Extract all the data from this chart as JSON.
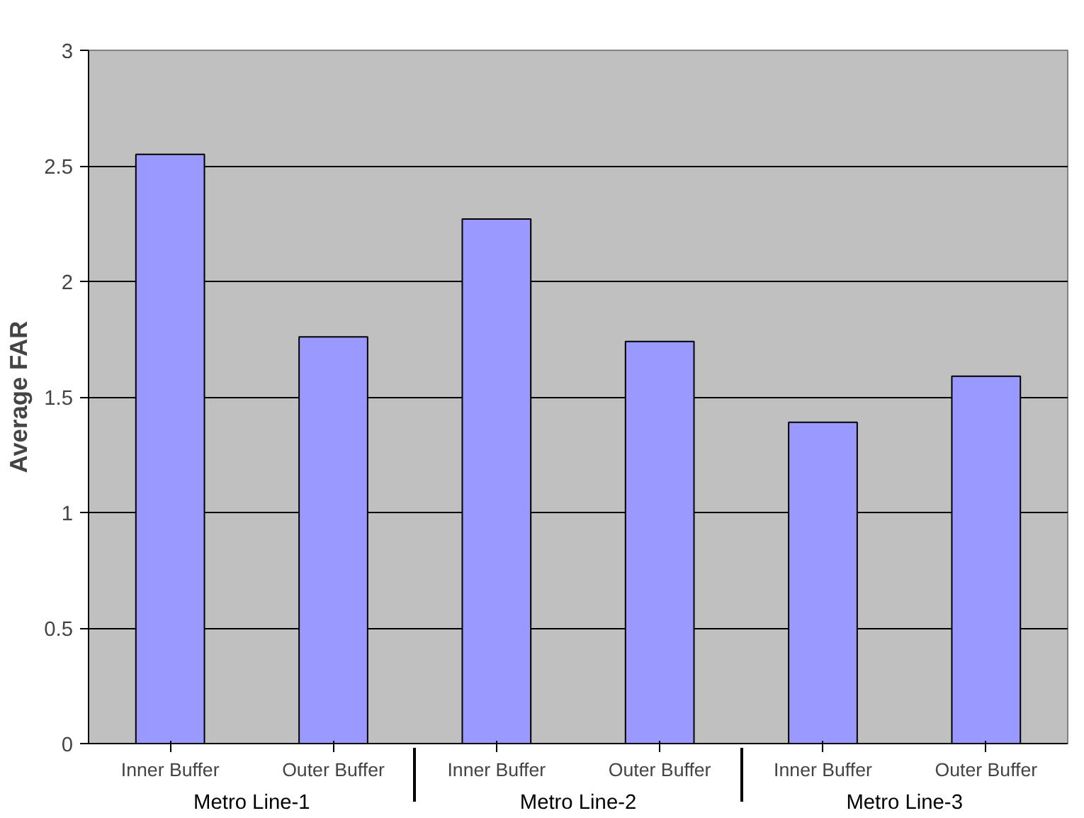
{
  "chart_data": {
    "type": "bar",
    "ylabel": "Average FAR",
    "categories": [
      "Inner Buffer",
      "Outer Buffer",
      "Inner Buffer",
      "Outer Buffer",
      "Inner Buffer",
      "Outer Buffer"
    ],
    "annotations": [
      "Metro Line-1",
      "Metro Line-2",
      "Metro Line-3"
    ],
    "values": [
      2.55,
      1.76,
      2.27,
      1.74,
      1.39,
      1.59
    ],
    "color": "#9999ff",
    "ylim": [
      0,
      3
    ],
    "yticks": [
      0,
      0.5,
      1,
      1.5,
      2,
      2.5,
      3
    ],
    "grid": "y"
  }
}
